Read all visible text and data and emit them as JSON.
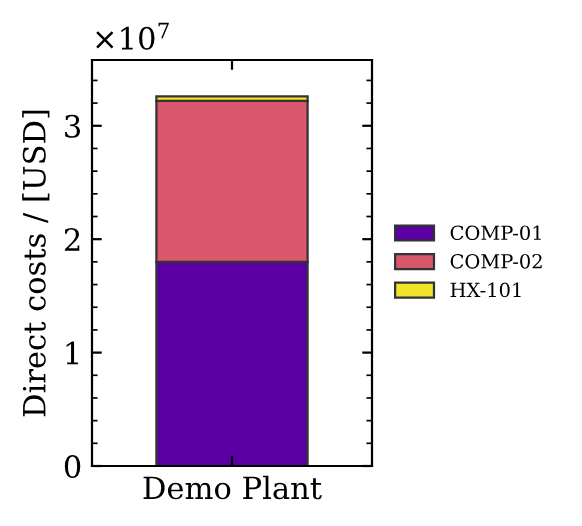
{
  "chart_data": {
    "type": "bar",
    "stacked": true,
    "ylabel": "Direct costs / [USD]",
    "categories": [
      "Demo Plant"
    ],
    "series": [
      {
        "name": "COMP-01",
        "color": "#5a00a3",
        "values": [
          1.8
        ]
      },
      {
        "name": "COMP-02",
        "color": "#d8576b",
        "values": [
          1.42
        ]
      },
      {
        "name": "HX-101",
        "color": "#f0e52a",
        "values": [
          0.04
        ]
      }
    ],
    "ylim": [
      0,
      3.58
    ],
    "yticks": [
      0,
      1,
      2,
      3
    ],
    "annotations": [
      "×10$^{7}$"
    ],
    "legend": "right"
  }
}
